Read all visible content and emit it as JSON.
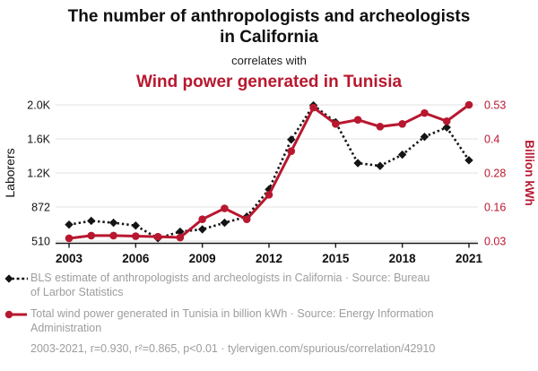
{
  "header": {
    "title": "The number of anthropologists and archeologists in California",
    "connector": "correlates with",
    "title2": "Wind power generated in Tunisia"
  },
  "colors": {
    "series_black": "#141414",
    "series_red": "#b8182f",
    "legend_text": "#9d9d9d",
    "grid": "#e8e8e8",
    "axis_line": "#1a1a1a"
  },
  "chart_data": {
    "type": "line",
    "x": [
      2003,
      2004,
      2005,
      2006,
      2007,
      2008,
      2009,
      2010,
      2011,
      2012,
      2013,
      2014,
      2015,
      2016,
      2017,
      2018,
      2019,
      2020,
      2021
    ],
    "x_tick_labels": [
      "2003",
      "2006",
      "2009",
      "2012",
      "2015",
      "2018",
      "2021"
    ],
    "x_ticks": [
      2003,
      2006,
      2009,
      2012,
      2015,
      2018,
      2021
    ],
    "grid": true,
    "legend_position": "bottom",
    "left_axis": {
      "label": "Laborers",
      "min": 510,
      "max": 1960,
      "tick_labels": [
        "510",
        "872",
        "1.2K",
        "1.6K",
        "2.0K"
      ]
    },
    "right_axis": {
      "label": "Billion kWh",
      "min": 0.03,
      "max": 0.53,
      "tick_labels": [
        "0.03",
        "0.16",
        "0.28",
        "0.4",
        "0.53"
      ]
    },
    "series": [
      {
        "name": "BLS estimate of anthropologists and archeologists in California",
        "axis": "left",
        "style": "dashed-diamond",
        "values": [
          685,
          725,
          705,
          675,
          540,
          610,
          635,
          705,
          770,
          1060,
          1590,
          1955,
          1775,
          1340,
          1310,
          1430,
          1620,
          1720,
          1370
        ]
      },
      {
        "name": "Total wind power generated in Tunisia in billion kWh",
        "axis": "right",
        "style": "solid-circle",
        "values": [
          0.04,
          0.05,
          0.05,
          0.048,
          0.046,
          0.043,
          0.11,
          0.15,
          0.11,
          0.2,
          0.36,
          0.52,
          0.46,
          0.475,
          0.45,
          0.46,
          0.5,
          0.47,
          0.53
        ]
      }
    ]
  },
  "legend": [
    {
      "text": "BLS estimate of anthropologists and archeologists in California · Source: Bureau of Larbor Statistics"
    },
    {
      "text": "Total wind power generated in Tunisia in billion kWh · Source: Energy Information Administration"
    }
  ],
  "footer": "2003-2021, r=0.930, r²=0.865, p<0.01 · tylervigen.com/spurious/correlation/42910"
}
